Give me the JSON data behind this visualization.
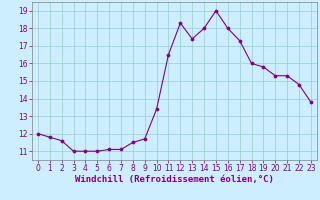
{
  "x": [
    0,
    1,
    2,
    3,
    4,
    5,
    6,
    7,
    8,
    9,
    10,
    11,
    12,
    13,
    14,
    15,
    16,
    17,
    18,
    19,
    20,
    21,
    22,
    23
  ],
  "y": [
    12.0,
    11.8,
    11.6,
    11.0,
    11.0,
    11.0,
    11.1,
    11.1,
    11.5,
    11.7,
    13.4,
    16.5,
    18.3,
    17.4,
    18.0,
    19.0,
    18.0,
    17.3,
    16.0,
    15.8,
    15.3,
    15.3,
    14.8,
    13.8
  ],
  "line_color": "#800080",
  "marker_color": "#800080",
  "bg_color": "#cceeff",
  "grid_color": "#99cccc",
  "xlabel": "Windchill (Refroidissement éolien,°C)",
  "xlim": [
    -0.5,
    23.5
  ],
  "ylim": [
    10.5,
    19.5
  ],
  "yticks": [
    11,
    12,
    13,
    14,
    15,
    16,
    17,
    18,
    19
  ],
  "xticks": [
    0,
    1,
    2,
    3,
    4,
    5,
    6,
    7,
    8,
    9,
    10,
    11,
    12,
    13,
    14,
    15,
    16,
    17,
    18,
    19,
    20,
    21,
    22,
    23
  ],
  "tick_fontsize": 5.5,
  "xlabel_fontsize": 6.5
}
